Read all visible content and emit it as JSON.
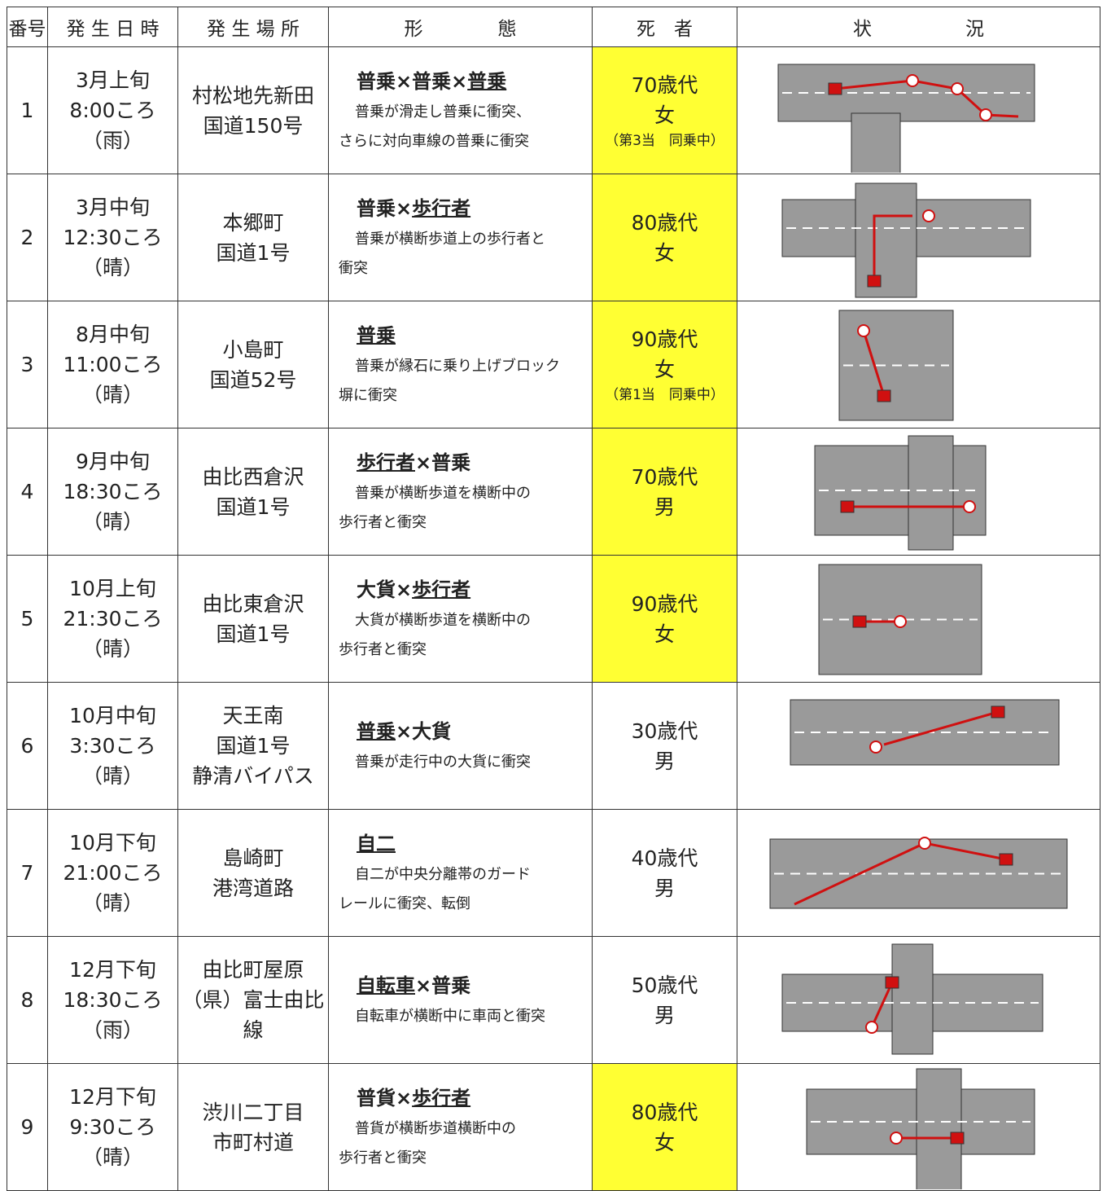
{
  "table": {
    "header": [
      "番号",
      "発 生 日 時",
      "発 生 場 所",
      "形　　　　態",
      "死　者",
      "状　　　　　況"
    ],
    "rows": [
      {
        "no": "1",
        "date": [
          "3月上旬",
          "8:00ころ",
          "（雨）"
        ],
        "place": [
          "村松地先新田",
          "国道150号"
        ],
        "type_parts": [
          "普乗×普乗×",
          "普乗"
        ],
        "underlined_part": 1,
        "description": [
          "普乗が滑走し普乗に衝突、",
          "さらに対向車線の普乗に衝突"
        ],
        "victim": [
          "70歳代",
          "女"
        ],
        "note": "（第3当　同乗中）",
        "highlight": true
      },
      {
        "no": "2",
        "date": [
          "3月中旬",
          "12:30ころ",
          "（晴）"
        ],
        "place": [
          "本郷町",
          "国道1号"
        ],
        "type_parts": [
          "普乗×",
          "歩行者"
        ],
        "underlined_part": 1,
        "description": [
          "普乗が横断歩道上の歩行者と",
          "衝突"
        ],
        "victim": [
          "80歳代",
          "女"
        ],
        "highlight": true
      },
      {
        "no": "3",
        "date": [
          "8月中旬",
          "11:00ころ",
          "（晴）"
        ],
        "place": [
          "小島町",
          "国道52号"
        ],
        "type_parts": [
          "普乗"
        ],
        "underlined_part": 0,
        "description": [
          "普乗が縁石に乗り上げブロック",
          "塀に衝突"
        ],
        "victim": [
          "90歳代",
          "女"
        ],
        "note": "（第1当　同乗中）",
        "highlight": true
      },
      {
        "no": "4",
        "date": [
          "9月中旬",
          "18:30ころ",
          "（晴）"
        ],
        "place": [
          "由比西倉沢",
          "国道1号"
        ],
        "type_parts": [
          "歩行者",
          "×普乗"
        ],
        "underlined_part": 0,
        "description": [
          "普乗が横断歩道を横断中の",
          "歩行者と衝突"
        ],
        "victim": [
          "70歳代",
          "男"
        ],
        "highlight": true
      },
      {
        "no": "5",
        "date": [
          "10月上旬",
          "21:30ころ",
          "（晴）"
        ],
        "place": [
          "由比東倉沢",
          "国道1号"
        ],
        "type_parts": [
          "大貨×",
          "歩行者"
        ],
        "underlined_part": 1,
        "description": [
          "大貨が横断歩道を横断中の",
          "歩行者と衝突"
        ],
        "victim": [
          "90歳代",
          "女"
        ],
        "highlight": true
      },
      {
        "no": "6",
        "date": [
          "10月中旬",
          "3:30ころ",
          "（晴）"
        ],
        "place": [
          "天王南",
          "国道1号",
          "静清バイパス"
        ],
        "type_parts": [
          "普乗",
          "×大貨"
        ],
        "underlined_part": 0,
        "description": [
          "普乗が走行中の大貨に衝突"
        ],
        "victim": [
          "30歳代",
          "男"
        ],
        "highlight": false
      },
      {
        "no": "7",
        "date": [
          "10月下旬",
          "21:00ころ",
          "（晴）"
        ],
        "place": [
          "島崎町",
          "港湾道路"
        ],
        "type_parts": [
          "自二"
        ],
        "underlined_part": 0,
        "description": [
          "自二が中央分離帯のガード",
          "レールに衝突、転倒"
        ],
        "victim": [
          "40歳代",
          "男"
        ],
        "highlight": false
      },
      {
        "no": "8",
        "date": [
          "12月下旬",
          "18:30ころ",
          "（雨）"
        ],
        "place": [
          "由比町屋原",
          "（県）富士由比線"
        ],
        "type_parts": [
          "自転車",
          "×普乗"
        ],
        "underlined_part": 0,
        "description": [
          "自転車が横断中に車両と衝突"
        ],
        "victim": [
          "50歳代",
          "男"
        ],
        "highlight": false
      },
      {
        "no": "9",
        "date": [
          "12月下旬",
          "9:30ころ",
          "（晴）"
        ],
        "place": [
          "渋川二丁目",
          "市町村道"
        ],
        "type_parts": [
          "普貨×",
          "歩行者"
        ],
        "underlined_part": 1,
        "description": [
          "普貨が横断歩道横断中の",
          "歩行者と衝突"
        ],
        "victim": [
          "80歳代",
          "女"
        ],
        "highlight": true
      }
    ]
  }
}
